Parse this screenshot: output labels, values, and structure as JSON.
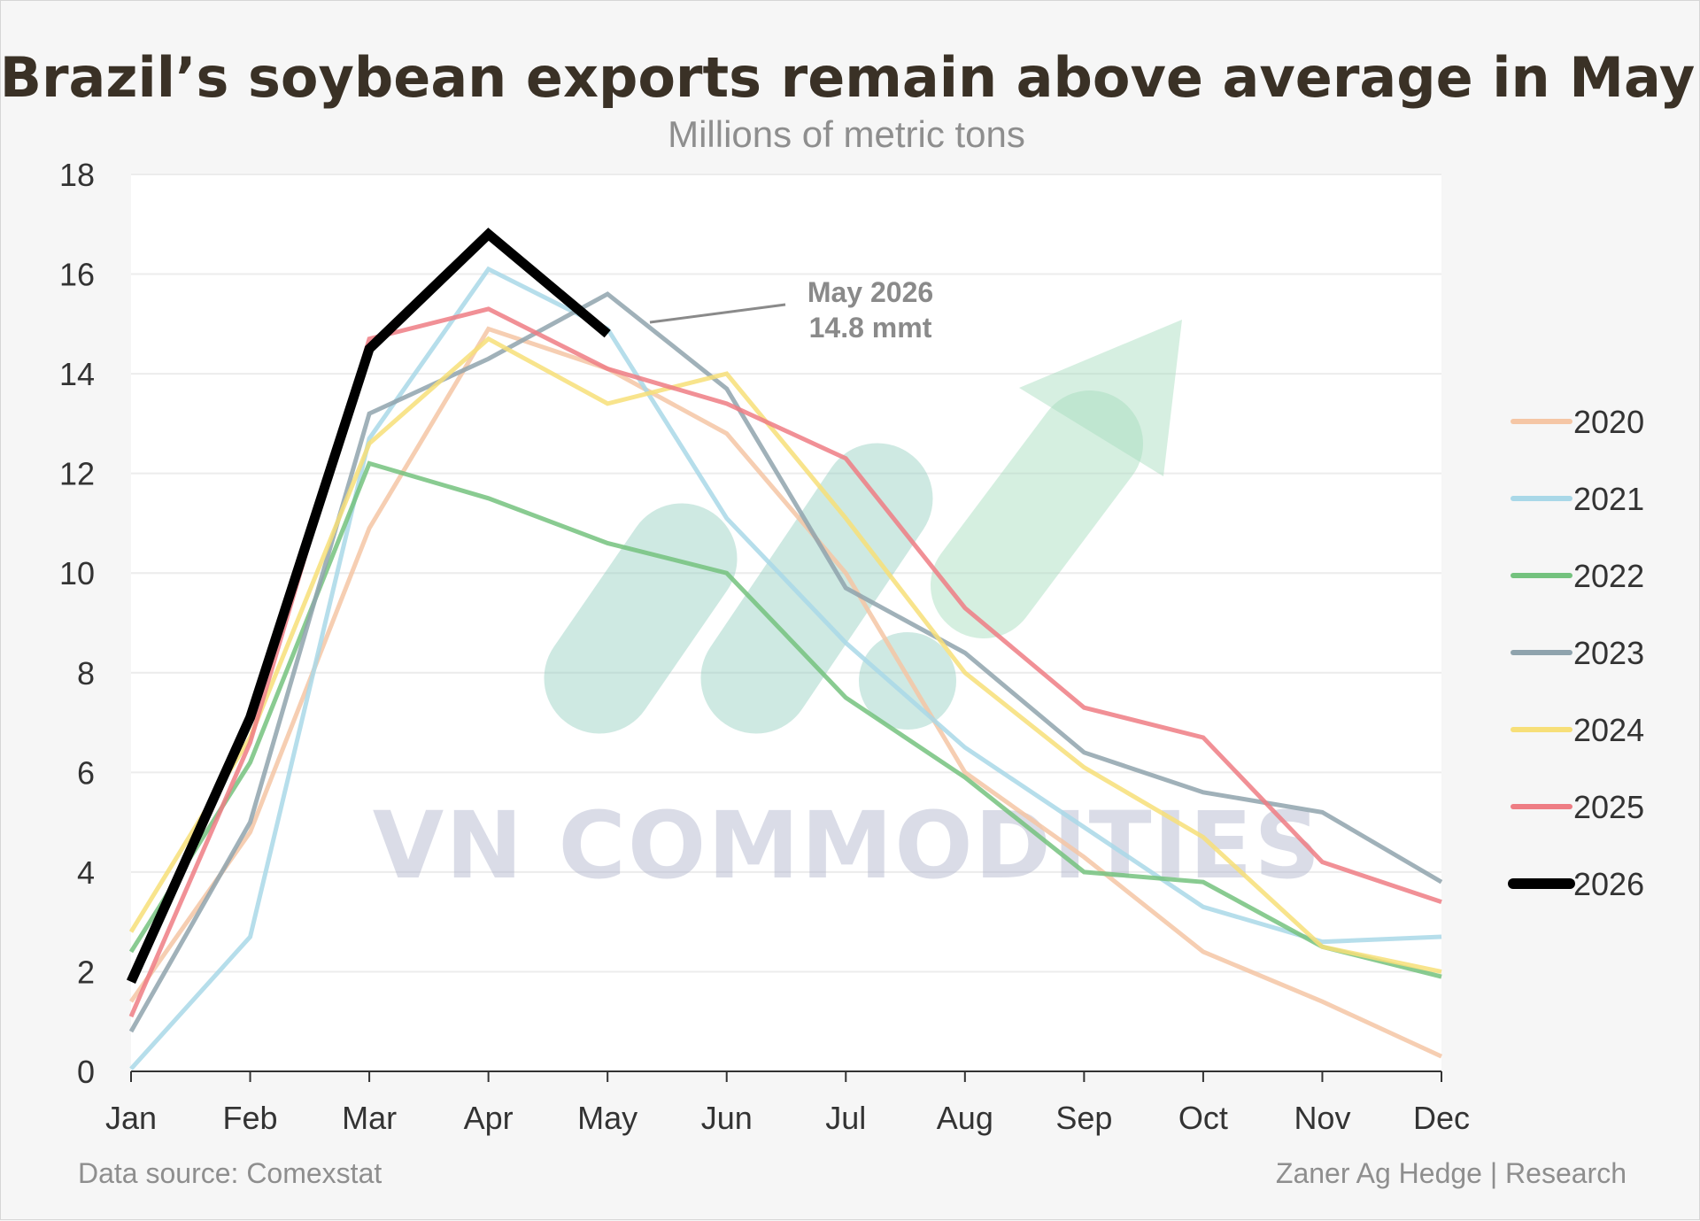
{
  "chart_data": {
    "type": "line",
    "title": "Brazil’s soybean exports remain above average in May",
    "subtitle": "Millions of metric tons",
    "xlabel": "",
    "ylabel": "",
    "categories": [
      "Jan",
      "Feb",
      "Mar",
      "Apr",
      "May",
      "Jun",
      "Jul",
      "Aug",
      "Sep",
      "Oct",
      "Nov",
      "Dec"
    ],
    "yticks": [
      0,
      2,
      4,
      6,
      8,
      10,
      12,
      14,
      16,
      18
    ],
    "ylim": [
      0,
      18
    ],
    "grid": "horizontal",
    "legend_position": "right",
    "series": [
      {
        "name": "2020",
        "color": "#f5c6a5",
        "values": [
          1.4,
          4.8,
          10.9,
          14.9,
          14.1,
          12.8,
          10.0,
          6.0,
          4.3,
          2.4,
          1.4,
          0.3
        ]
      },
      {
        "name": "2021",
        "color": "#a9d8e8",
        "values": [
          0.05,
          2.7,
          12.7,
          16.1,
          14.9,
          11.1,
          8.6,
          6.5,
          4.9,
          3.3,
          2.6,
          2.7
        ]
      },
      {
        "name": "2022",
        "color": "#74c27e",
        "values": [
          2.4,
          6.2,
          12.2,
          11.5,
          10.6,
          10.0,
          7.5,
          5.9,
          4.0,
          3.8,
          2.5,
          1.9
        ]
      },
      {
        "name": "2023",
        "color": "#8fa3ad",
        "values": [
          0.8,
          5.0,
          13.2,
          14.3,
          15.6,
          13.7,
          9.7,
          8.4,
          6.4,
          5.6,
          5.2,
          3.8
        ]
      },
      {
        "name": "2024",
        "color": "#f7df78",
        "values": [
          2.8,
          6.7,
          12.6,
          14.7,
          13.4,
          14.0,
          11.1,
          8.0,
          6.1,
          4.7,
          2.5,
          2.0
        ]
      },
      {
        "name": "2025",
        "color": "#ee7d84",
        "values": [
          1.1,
          6.6,
          14.7,
          15.3,
          14.1,
          13.4,
          12.3,
          9.3,
          7.3,
          6.7,
          4.2,
          3.4
        ]
      },
      {
        "name": "2026",
        "color": "#000000",
        "values": [
          1.8,
          7.1,
          14.5,
          16.8,
          14.8,
          null,
          null,
          null,
          null,
          null,
          null,
          null
        ]
      }
    ],
    "annotation": {
      "line1": "May 2026",
      "line2": "14.8 mmt",
      "x": "May",
      "y": 14.8
    }
  },
  "watermark": {
    "text": "VN COMMODITIES"
  },
  "footer": {
    "source": "Data source: Comexstat",
    "credit": "Zaner Ag Hedge | Research"
  }
}
